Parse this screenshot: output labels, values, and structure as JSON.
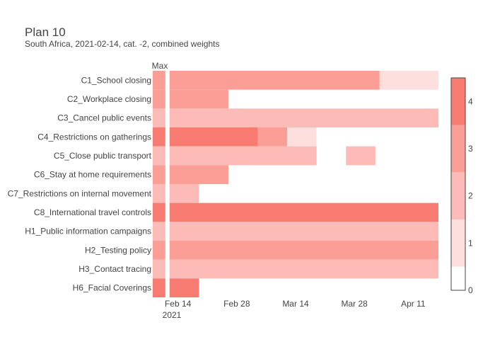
{
  "chart_data": {
    "type": "heatmap",
    "title": "Plan 10",
    "subtitle": "South Africa, 2021-02-14, cat. -2, combined weights",
    "max_label": "Max",
    "x_ticks": [
      "Feb 14",
      "Feb 28",
      "Mar 14",
      "Mar 28",
      "Apr 11"
    ],
    "x_year_label": "2021",
    "x_range": [
      "2021-02-08",
      "2021-04-17"
    ],
    "max_column_range": [
      "2021-02-08",
      "2021-02-11"
    ],
    "plan_start": "2021-02-12",
    "rows": [
      {
        "label": "C1_School closing",
        "max": 3,
        "segments": [
          {
            "start": "2021-02-12",
            "end": "2021-04-03",
            "value": 3
          },
          {
            "start": "2021-04-03",
            "end": "2021-04-17",
            "value": 1
          }
        ]
      },
      {
        "label": "C2_Workplace closing",
        "max": 3,
        "segments": [
          {
            "start": "2021-02-12",
            "end": "2021-02-26",
            "value": 3
          }
        ]
      },
      {
        "label": "C3_Cancel public events",
        "max": 2,
        "segments": [
          {
            "start": "2021-02-12",
            "end": "2021-04-17",
            "value": 2
          }
        ]
      },
      {
        "label": "C4_Restrictions on gatherings",
        "max": 4,
        "segments": [
          {
            "start": "2021-02-12",
            "end": "2021-03-05",
            "value": 4
          },
          {
            "start": "2021-03-05",
            "end": "2021-03-12",
            "value": 3
          },
          {
            "start": "2021-03-12",
            "end": "2021-03-19",
            "value": 1
          }
        ]
      },
      {
        "label": "C5_Close public transport",
        "max": 2,
        "segments": [
          {
            "start": "2021-02-12",
            "end": "2021-03-19",
            "value": 2
          },
          {
            "start": "2021-03-26",
            "end": "2021-04-02",
            "value": 2
          }
        ]
      },
      {
        "label": "C6_Stay at home requirements",
        "max": 3,
        "segments": [
          {
            "start": "2021-02-12",
            "end": "2021-02-26",
            "value": 3
          }
        ]
      },
      {
        "label": "C7_Restrictions on internal movement",
        "max": 2,
        "segments": [
          {
            "start": "2021-02-12",
            "end": "2021-02-19",
            "value": 2
          }
        ]
      },
      {
        "label": "C8_International travel controls",
        "max": 4,
        "segments": [
          {
            "start": "2021-02-12",
            "end": "2021-04-17",
            "value": 4
          }
        ]
      },
      {
        "label": "H1_Public information campaigns",
        "max": 2,
        "segments": [
          {
            "start": "2021-02-12",
            "end": "2021-04-17",
            "value": 2
          }
        ]
      },
      {
        "label": "H2_Testing policy",
        "max": 3,
        "segments": [
          {
            "start": "2021-02-12",
            "end": "2021-04-17",
            "value": 3
          }
        ]
      },
      {
        "label": "H3_Contact tracing",
        "max": 2,
        "segments": [
          {
            "start": "2021-02-12",
            "end": "2021-04-17",
            "value": 2
          }
        ]
      },
      {
        "label": "H6_Facial Coverings",
        "max": 4,
        "segments": [
          {
            "start": "2021-02-12",
            "end": "2021-02-19",
            "value": 4
          }
        ]
      }
    ],
    "colorscale": {
      "min": 0,
      "max": 4.5,
      "ticks": [
        0,
        1,
        2,
        3,
        4
      ],
      "colors": [
        "#ffffff",
        "#fde0dd",
        "#fcbbb6",
        "#fa9e96",
        "#f87b71"
      ]
    },
    "legend_position": "right"
  }
}
